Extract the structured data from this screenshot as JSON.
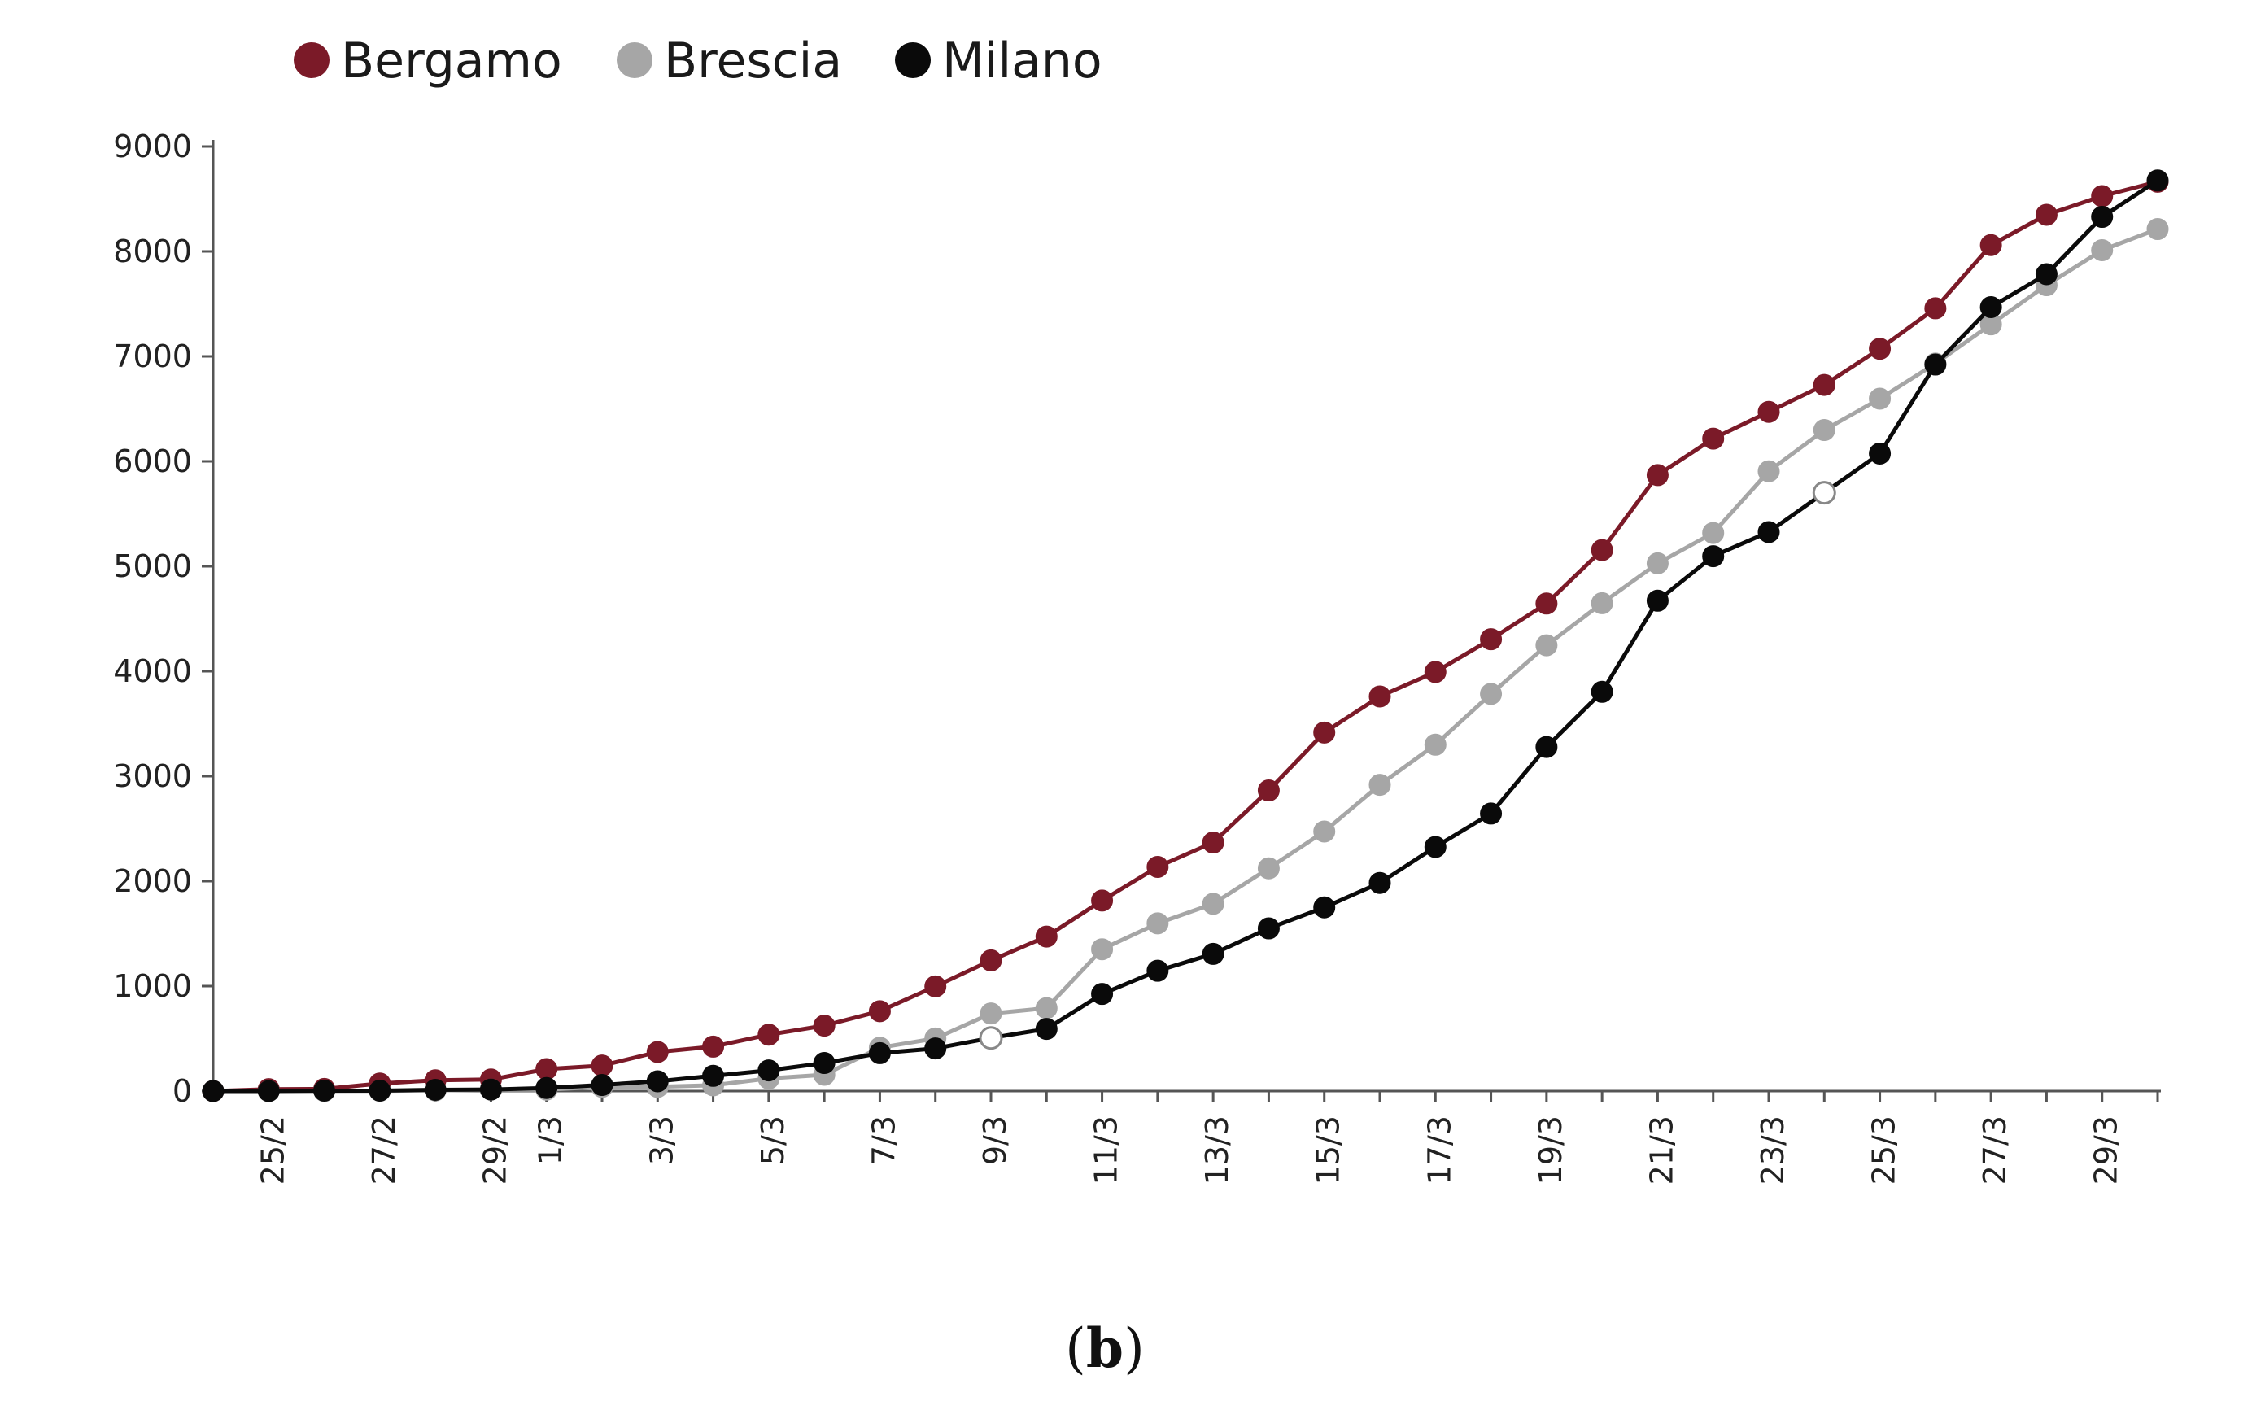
{
  "chart_data": {
    "type": "line",
    "title": "",
    "xlabel": "",
    "ylabel": "",
    "ylim": [
      0,
      9000
    ],
    "yticks": [
      0,
      1000,
      2000,
      3000,
      4000,
      5000,
      6000,
      7000,
      8000,
      9000
    ],
    "grid": false,
    "legend_position": "top-left",
    "x": [
      "24/2",
      "25/2",
      "26/2",
      "27/2",
      "28/2",
      "29/2",
      "1/3",
      "2/3",
      "3/3",
      "4/3",
      "5/3",
      "6/3",
      "7/3",
      "8/3",
      "9/3",
      "10/3",
      "11/3",
      "12/3",
      "13/3",
      "14/3",
      "15/3",
      "16/3",
      "17/3",
      "18/3",
      "19/3",
      "20/3",
      "21/3",
      "22/3",
      "23/3",
      "24/3",
      "25/3",
      "26/3",
      "27/3",
      "28/3",
      "29/3",
      "30/3"
    ],
    "xtick_labels": [
      "25/2",
      "27/2",
      "29/2",
      "1/3",
      "3/3",
      "5/3",
      "7/3",
      "9/3",
      "11/3",
      "13/3",
      "15/3",
      "17/3",
      "19/3",
      "21/3",
      "23/3",
      "25/3",
      "27/3",
      "29/3"
    ],
    "series": [
      {
        "name": "Bergamo",
        "color": "#7b1a28",
        "values": [
          0,
          18,
          20,
          72,
          103,
          110,
          209,
          243,
          372,
          423,
          537,
          623,
          761,
          997,
          1245,
          1472,
          1815,
          2136,
          2368,
          2864,
          3416,
          3760,
          3993,
          4305,
          4645,
          5154,
          5869,
          6216,
          6471,
          6728,
          7072,
          7458,
          8060,
          8349,
          8527,
          8664
        ]
      },
      {
        "name": "Brescia",
        "color": "#a6a6a6",
        "values": [
          0,
          0,
          0,
          2,
          6,
          14,
          14,
          40,
          40,
          55,
          120,
          155,
          413,
          501,
          739,
          790,
          1351,
          1598,
          1784,
          2122,
          2473,
          2918,
          3300,
          3784,
          4247,
          4648,
          5028,
          5317,
          5905,
          6298,
          6597,
          6931,
          7305,
          7678,
          8012,
          8213
        ]
      },
      {
        "name": "Milano",
        "color": "#0a0a0a",
        "values": [
          0,
          0,
          4,
          4,
          12,
          15,
          29,
          58,
          93,
          145,
          197,
          267,
          361,
          406,
          506,
          592,
          925,
          1146,
          1307,
          1550,
          1750,
          1983,
          2326,
          2644,
          3278,
          3804,
          4672,
          5096,
          5326,
          5701,
          6074,
          6922,
          7469,
          7783,
          8329,
          8676
        ]
      }
    ],
    "hollow_markers": [
      {
        "series": "Milano",
        "x": "9/3"
      },
      {
        "series": "Milano",
        "x": "24/3"
      }
    ]
  },
  "caption": {
    "open": "(",
    "label": "b",
    "close": ")"
  }
}
